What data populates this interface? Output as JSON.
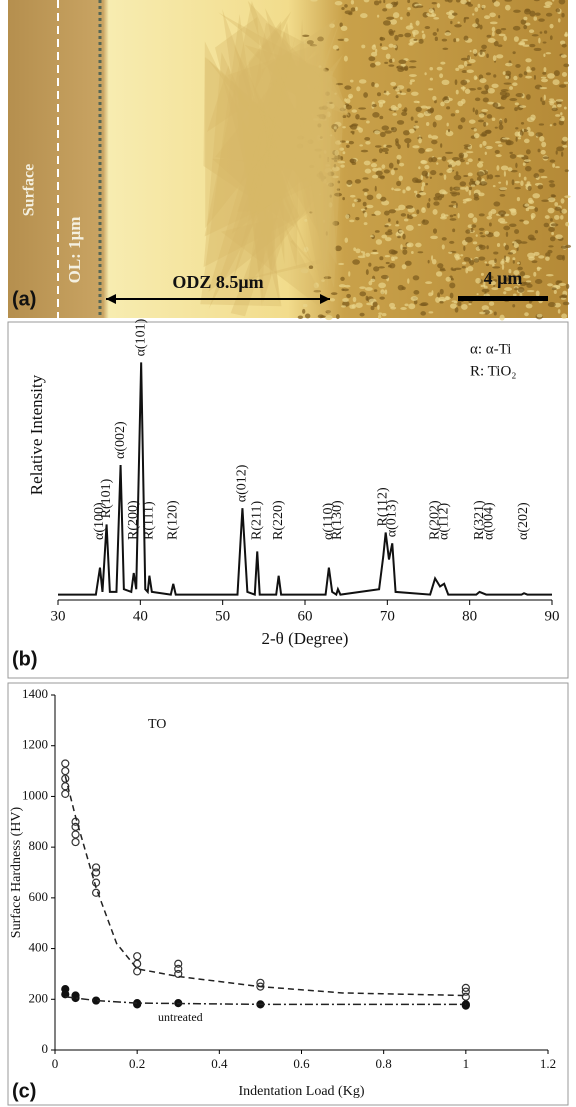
{
  "micrograph": {
    "label": "(a)",
    "surface": "Surface",
    "layer": "OL: 1μm",
    "zone": "ODZ  8.5μm",
    "scale_bar": "4 μm"
  },
  "chart_data": [
    {
      "type": "line",
      "panel_label": "(b)",
      "x_label": "2-θ (Degree)",
      "y_label": "Relative Intensity",
      "legend_lines": [
        "α: α-Ti",
        "R: TiO₂"
      ],
      "x": [
        30,
        34.6,
        35.1,
        35.4,
        35.9,
        36.3,
        37.1,
        37.6,
        38.0,
        38.9,
        39.2,
        39.5,
        40.1,
        40.6,
        40.9,
        41.1,
        41.4,
        43.7,
        44.0,
        44.3,
        51.8,
        52.4,
        53.0,
        53.9,
        54.2,
        54.5,
        56.5,
        56.8,
        57.1,
        62.5,
        62.9,
        63.3,
        63.8,
        64.0,
        64.3,
        69.0,
        69.5,
        69.8,
        70.2,
        70.6,
        71.0,
        75.2,
        75.8,
        76.4,
        76.9,
        77.4,
        80.8,
        81.2,
        82,
        82.4,
        86.3,
        86.6,
        87,
        90
      ],
      "values": [
        2,
        2,
        12,
        3,
        28,
        3,
        3,
        50,
        4,
        3,
        10,
        4,
        88,
        4,
        3,
        9,
        3,
        2,
        6,
        2,
        2,
        34,
        3,
        2,
        18,
        2,
        2,
        9,
        2,
        2,
        12,
        3,
        2,
        4,
        2,
        4,
        16,
        25,
        15,
        21,
        3,
        2,
        8,
        5,
        6,
        2,
        2,
        3,
        2,
        2,
        2,
        2.5,
        2,
        2
      ],
      "color": "#111111",
      "xlim": [
        30,
        90
      ],
      "xticks": [
        30,
        40,
        50,
        60,
        70,
        80,
        90
      ],
      "ylim": [
        0,
        100
      ],
      "peak_labels": [
        {
          "text": "α(100)",
          "x": 35.1
        },
        {
          "text": "R(101)",
          "x": 35.9
        },
        {
          "text": "α(002)",
          "x": 37.6
        },
        {
          "text": "R(200)",
          "x": 39.2
        },
        {
          "text": "α(101)",
          "x": 40.1
        },
        {
          "text": "R(111)",
          "x": 41.1
        },
        {
          "text": "R(120)",
          "x": 44.0
        },
        {
          "text": "α(012)",
          "x": 52.4
        },
        {
          "text": "R(211)",
          "x": 54.2
        },
        {
          "text": "R(220)",
          "x": 56.8
        },
        {
          "text": "α(110)",
          "x": 62.9
        },
        {
          "text": "R(130)",
          "x": 64.0
        },
        {
          "text": "R(112)",
          "x": 69.5
        },
        {
          "text": "α(013)",
          "x": 70.6
        },
        {
          "text": "R(202)",
          "x": 75.8
        },
        {
          "text": "α(112)",
          "x": 76.9
        },
        {
          "text": "R(321)",
          "x": 81.2
        },
        {
          "text": "α(004)",
          "x": 82.4
        },
        {
          "text": "α(202)",
          "x": 86.6
        }
      ]
    },
    {
      "type": "scatter",
      "panel_label": "(c)",
      "x_label": "Indentation Load (Kg)",
      "y_label": "Surface Hardness (HV)",
      "annotations": [
        "TO",
        "untreated"
      ],
      "series": [
        {
          "kind": "scatter",
          "marker": "open",
          "color": "#333333",
          "x": [
            0.025,
            0.025,
            0.025,
            0.025,
            0.025,
            0.05,
            0.05,
            0.05,
            0.05,
            0.1,
            0.1,
            0.1,
            0.1,
            0.2,
            0.2,
            0.2,
            0.3,
            0.3,
            0.3,
            0.5,
            0.5,
            1,
            1,
            1
          ],
          "values": [
            1130,
            1100,
            1070,
            1040,
            1010,
            900,
            880,
            850,
            820,
            720,
            700,
            660,
            620,
            370,
            340,
            310,
            340,
            320,
            300,
            265,
            250,
            245,
            230,
            210
          ]
        },
        {
          "kind": "scatter",
          "marker": "filled",
          "color": "#111111",
          "x": [
            0.025,
            0.025,
            0.05,
            0.05,
            0.1,
            0.2,
            0.2,
            0.3,
            0.5,
            1,
            1
          ],
          "values": [
            240,
            220,
            215,
            205,
            195,
            185,
            180,
            185,
            180,
            180,
            175
          ]
        },
        {
          "kind": "line",
          "dash": "dashed",
          "color": "#222222",
          "x": [
            0.025,
            0.05,
            0.1,
            0.15,
            0.2,
            0.3,
            0.5,
            0.7,
            1
          ],
          "values": [
            1080,
            920,
            640,
            420,
            320,
            290,
            250,
            225,
            215
          ]
        },
        {
          "kind": "line",
          "dash": "dashdot",
          "color": "#222222",
          "x": [
            0.025,
            0.1,
            0.2,
            0.5,
            1
          ],
          "values": [
            210,
            195,
            185,
            180,
            180
          ]
        }
      ],
      "xlim": [
        0,
        1.2
      ],
      "xticks": [
        0,
        0.2,
        0.4,
        0.6,
        0.8,
        1,
        1.2
      ],
      "ylim": [
        0,
        1400
      ],
      "yticks": [
        0,
        200,
        400,
        600,
        800,
        1000,
        1200,
        1400
      ]
    }
  ]
}
